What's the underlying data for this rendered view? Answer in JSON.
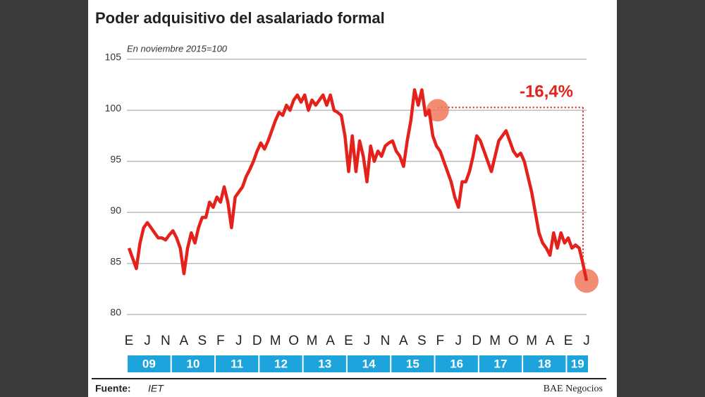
{
  "chart_data": {
    "type": "line",
    "title": "Poder adquisitivo del asalariado formal",
    "subtitle": "En noviembre 2015=100",
    "annotation": "-16,4%",
    "source_label": "Fuente:",
    "source": "IET",
    "publisher": "BAE Negocios",
    "categories": [
      "E",
      null,
      null,
      null,
      null,
      "J",
      null,
      null,
      null,
      null,
      "N",
      null,
      null,
      null,
      null,
      "A",
      null,
      null,
      null,
      null,
      "S",
      null,
      null,
      null,
      null,
      "F",
      null,
      null,
      null,
      null,
      "J",
      null,
      null,
      null,
      null,
      "D",
      null,
      null,
      null,
      null,
      "M",
      null,
      null,
      null,
      null,
      "O",
      null,
      null,
      null,
      null,
      "M",
      null,
      null,
      null,
      null,
      "A",
      null,
      null,
      null,
      null,
      "E",
      null,
      null,
      null,
      null,
      "J",
      null,
      null,
      null,
      null,
      "N",
      null,
      null,
      null,
      null,
      "A",
      null,
      null,
      null,
      null,
      "S",
      null,
      null,
      null,
      null,
      "F",
      null,
      null,
      null,
      null,
      "J",
      null,
      null,
      null,
      null,
      "D",
      null,
      null,
      null,
      null,
      "M",
      null,
      null,
      null,
      null,
      "O",
      null,
      null,
      null,
      null,
      "M",
      null,
      null,
      null,
      null,
      "A",
      null,
      null,
      null,
      null,
      "E",
      null,
      null,
      null,
      null,
      "J"
    ],
    "years": [
      "09",
      "10",
      "11",
      "12",
      "13",
      "14",
      "15",
      "16",
      "17",
      "18",
      "19"
    ],
    "series": [
      {
        "name": "Poder adquisitivo",
        "color": "#e4211b",
        "values": [
          86.5,
          85.5,
          84.5,
          87,
          88.5,
          89,
          88.5,
          88,
          87.5,
          87.5,
          87.3,
          87.8,
          88.2,
          87.5,
          86.5,
          84,
          86.5,
          88,
          87,
          88.5,
          89.5,
          89.5,
          91,
          90.5,
          91.5,
          91,
          92.5,
          91,
          88.5,
          91.5,
          92,
          92.5,
          93.5,
          94.2,
          95,
          96,
          96.8,
          96.2,
          97,
          98,
          99,
          99.8,
          99.5,
          100.5,
          100,
          101,
          101.5,
          100.8,
          101.5,
          100,
          101,
          100.5,
          101,
          101.5,
          100.5,
          101.5,
          100,
          99.8,
          99.5,
          97.5,
          94,
          97.5,
          94,
          97,
          95.5,
          93,
          96.5,
          95,
          96,
          95.5,
          96.5,
          96.8,
          97,
          96,
          95.5,
          94.5,
          97,
          99,
          102,
          100.5,
          102,
          99.5,
          100,
          97.5,
          96.5,
          96,
          95,
          94,
          93,
          91.5,
          90.5,
          93,
          93,
          94,
          95.5,
          97.5,
          97,
          96,
          95,
          94,
          95.5,
          97,
          97.5,
          98,
          97,
          96,
          95.5,
          95.8,
          95,
          93.5,
          92,
          90,
          88,
          87,
          86.5,
          85.8,
          88,
          86.5,
          88,
          87,
          87.5,
          86.5,
          86.8,
          86.5,
          85,
          83.3
        ]
      }
    ],
    "ylim": [
      80,
      105
    ],
    "yticks": [
      80,
      85,
      90,
      95,
      100,
      105
    ],
    "grid": true
  }
}
